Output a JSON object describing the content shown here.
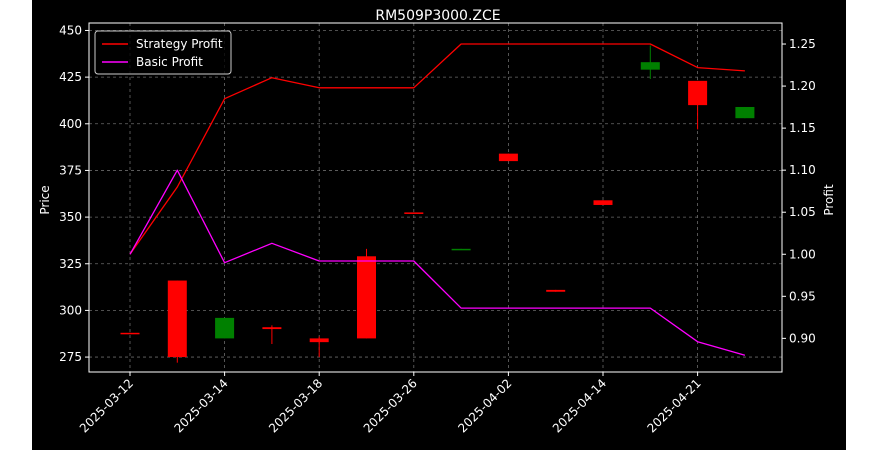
{
  "chart_data": {
    "type": "candlestick",
    "title": "RM509P3000.ZCE",
    "xlabel": "",
    "ylabel_left": "Price",
    "ylabel_right": "Profit",
    "ylim_left": [
      267,
      454
    ],
    "ylim_right": [
      0.86,
      1.275
    ],
    "yticks_left": [
      275,
      300,
      325,
      350,
      375,
      400,
      425,
      450
    ],
    "yticks_right": [
      "0.90",
      "0.95",
      "1.00",
      "1.05",
      "1.10",
      "1.15",
      "1.20",
      "1.25"
    ],
    "xtick_labels": [
      "2025-03-12",
      "2025-03-14",
      "2025-03-18",
      "2025-03-26",
      "2025-04-02",
      "2025-04-14",
      "2025-04-21"
    ],
    "xtick_index": [
      0,
      2,
      4,
      6,
      8,
      10,
      12
    ],
    "grid": true,
    "legend_position": "top-left",
    "colors": {
      "up": "#008000",
      "down": "#ff0000",
      "strategy": "#ff0000",
      "basic": "#ff00ff"
    },
    "candles": [
      {
        "i": 0,
        "open": 288,
        "close": 287.5,
        "high": 288,
        "low": 287.5
      },
      {
        "i": 1,
        "open": 316,
        "close": 275,
        "high": 316,
        "low": 272
      },
      {
        "i": 2,
        "open": 285,
        "close": 296,
        "high": 296,
        "low": 285
      },
      {
        "i": 3,
        "open": 291,
        "close": 290,
        "high": 292,
        "low": 282
      },
      {
        "i": 4,
        "open": 285,
        "close": 283,
        "high": 286,
        "low": 275
      },
      {
        "i": 5,
        "open": 329,
        "close": 285,
        "high": 333,
        "low": 285
      },
      {
        "i": 6,
        "open": 352.5,
        "close": 352,
        "high": 352.5,
        "low": 352
      },
      {
        "i": 7,
        "open": 332.5,
        "close": 333,
        "high": 333,
        "low": 332.5
      },
      {
        "i": 8,
        "open": 384,
        "close": 380,
        "high": 384,
        "low": 380
      },
      {
        "i": 9,
        "open": 311,
        "close": 310,
        "high": 311,
        "low": 310
      },
      {
        "i": 10,
        "open": 359,
        "close": 356.5,
        "high": 359,
        "low": 356.5
      },
      {
        "i": 11,
        "open": 429,
        "close": 433,
        "high": 442,
        "low": 424
      },
      {
        "i": 12,
        "open": 423,
        "close": 410,
        "high": 423,
        "low": 397
      },
      {
        "i": 13,
        "open": 403,
        "close": 409,
        "high": 409,
        "low": 403
      }
    ],
    "series": [
      {
        "name": "Strategy Profit",
        "axis": "right",
        "x": [
          0,
          1,
          2,
          3,
          4,
          6,
          7,
          11,
          12,
          13
        ],
        "values": [
          1.0,
          1.08,
          1.185,
          1.21,
          1.198,
          1.198,
          1.25,
          1.25,
          1.222,
          1.218
        ]
      },
      {
        "name": "Basic Profit",
        "axis": "right",
        "x": [
          0,
          1,
          2,
          3,
          4,
          6,
          7,
          11,
          12,
          13
        ],
        "values": [
          1.0,
          1.1,
          0.99,
          1.013,
          0.992,
          0.992,
          0.936,
          0.936,
          0.896,
          0.88
        ]
      }
    ]
  }
}
